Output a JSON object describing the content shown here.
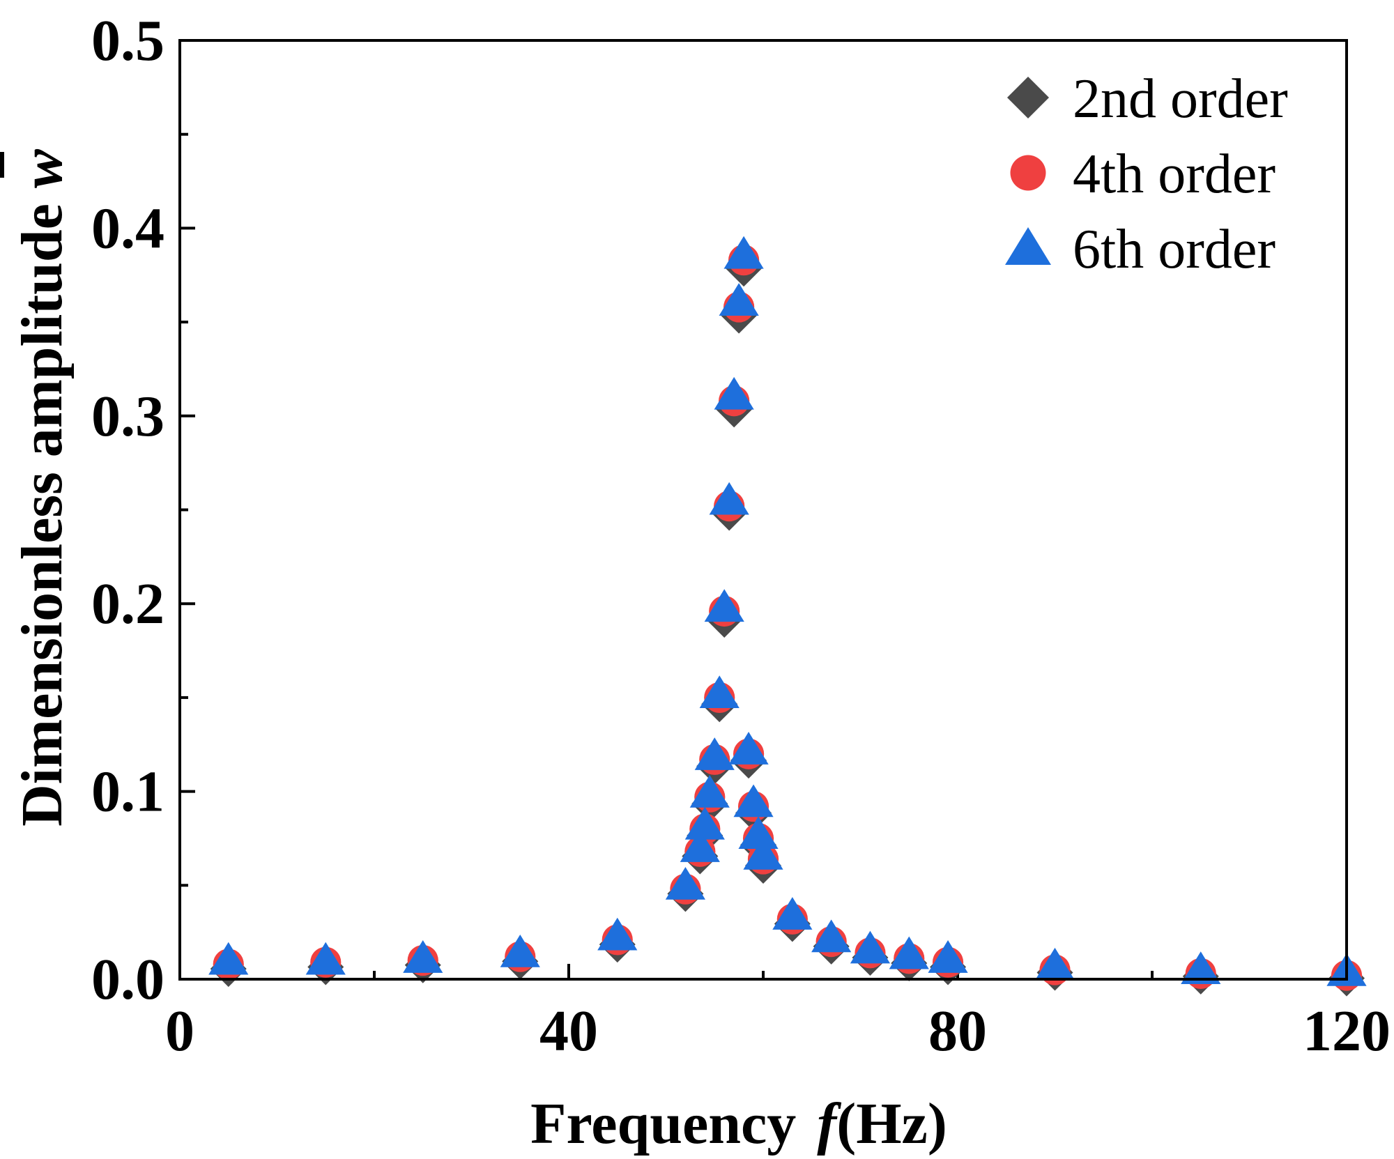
{
  "chart_data": {
    "type": "scatter",
    "title": "",
    "xlabel": "Frequency",
    "xlabel_symbol": "f",
    "xlabel_unit": "(Hz)",
    "ylabel": "Dimensionless amplitude",
    "ylabel_symbol": "w",
    "xlim": [
      0,
      120
    ],
    "ylim": [
      0,
      0.5
    ],
    "xticks": [
      0,
      40,
      80,
      120
    ],
    "xtick_labels": [
      "0",
      "40",
      "80",
      "120"
    ],
    "yticks": [
      0.0,
      0.1,
      0.2,
      0.3,
      0.4,
      0.5
    ],
    "ytick_labels": [
      "0.0",
      "0.1",
      "0.2",
      "0.3",
      "0.4",
      "0.5"
    ],
    "grid": false,
    "legend_position": "top-right",
    "series": [
      {
        "name": "2nd order",
        "marker": "diamond",
        "color": "#4a4a4a",
        "x": [
          5,
          15,
          25,
          35,
          45,
          52,
          53.5,
          54,
          54.5,
          55,
          55.5,
          56,
          56.5,
          57,
          57.5,
          58,
          58.5,
          59,
          59.5,
          60,
          63,
          67,
          71,
          75,
          79,
          90,
          105,
          120
        ],
        "y": [
          0.007,
          0.008,
          0.009,
          0.011,
          0.02,
          0.047,
          0.067,
          0.078,
          0.095,
          0.115,
          0.148,
          0.193,
          0.25,
          0.305,
          0.355,
          0.38,
          0.118,
          0.09,
          0.073,
          0.062,
          0.031,
          0.019,
          0.013,
          0.01,
          0.008,
          0.005,
          0.003,
          0.002
        ]
      },
      {
        "name": "4th order",
        "marker": "circle",
        "color": "#ef4040",
        "x": [
          5,
          15,
          25,
          35,
          45,
          52,
          53.5,
          54,
          54.5,
          55,
          55.5,
          56,
          56.5,
          57,
          57.5,
          58,
          58.5,
          59,
          59.5,
          60,
          63,
          67,
          71,
          75,
          79,
          90,
          105,
          120
        ],
        "y": [
          0.008,
          0.009,
          0.01,
          0.012,
          0.021,
          0.048,
          0.068,
          0.08,
          0.097,
          0.117,
          0.15,
          0.196,
          0.252,
          0.308,
          0.358,
          0.383,
          0.12,
          0.092,
          0.075,
          0.064,
          0.032,
          0.02,
          0.014,
          0.011,
          0.009,
          0.005,
          0.003,
          0.002
        ]
      },
      {
        "name": "6th order",
        "marker": "triangle",
        "color": "#1e6fdc",
        "x": [
          5,
          15,
          25,
          35,
          45,
          52,
          53.5,
          54,
          54.5,
          55,
          55.5,
          56,
          56.5,
          57,
          57.5,
          58,
          58.5,
          59,
          59.5,
          60,
          63,
          67,
          71,
          75,
          79,
          90,
          105,
          120
        ],
        "y": [
          0.009,
          0.009,
          0.01,
          0.013,
          0.022,
          0.049,
          0.069,
          0.081,
          0.098,
          0.118,
          0.151,
          0.197,
          0.254,
          0.31,
          0.36,
          0.385,
          0.121,
          0.093,
          0.076,
          0.065,
          0.033,
          0.021,
          0.015,
          0.012,
          0.01,
          0.006,
          0.004,
          0.003
        ]
      }
    ]
  }
}
